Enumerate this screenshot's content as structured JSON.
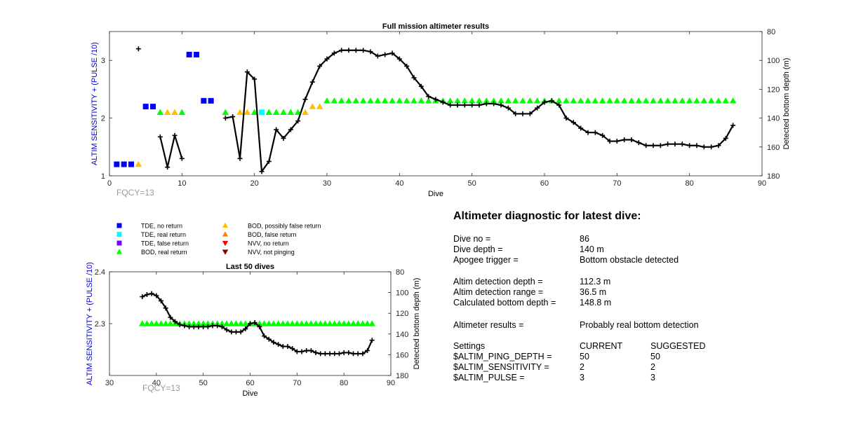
{
  "chart_data": [
    {
      "type": "scatter",
      "title": "Full mission altimeter results",
      "xlabel": "Dive",
      "ylabel_left": "ALTIM SENSITIVITY + (PULSE /10)",
      "ylabel_right": "Detected bottom depth (m)",
      "annotation": "FQCY=13",
      "xlim": [
        0,
        90
      ],
      "xticks": [
        "0",
        "10",
        "20",
        "30",
        "40",
        "50",
        "60",
        "70",
        "80",
        "90"
      ],
      "ylim_left": [
        1,
        3.5
      ],
      "yticks_left": [
        "1",
        "2",
        "3"
      ],
      "ylim_right_reversed": [
        180,
        80
      ],
      "yticks_right": [
        "80",
        "100",
        "120",
        "140",
        "160",
        "180"
      ],
      "markers": [
        {
          "category": "TDE, no return",
          "points": [
            [
              1,
              1.2
            ],
            [
              2,
              1.2
            ],
            [
              3,
              1.2
            ],
            [
              5,
              2.2
            ],
            [
              6,
              2.2
            ],
            [
              11,
              3.1
            ],
            [
              12,
              3.1
            ],
            [
              13,
              2.3
            ],
            [
              14,
              2.3
            ]
          ]
        },
        {
          "category": "TDE, real return",
          "points": [
            [
              21,
              2.1
            ]
          ]
        },
        {
          "category": "BOD, real return",
          "points": [
            [
              7,
              2.1
            ],
            [
              10,
              2.1
            ],
            [
              16,
              2.1
            ],
            [
              20,
              2.1
            ],
            [
              22,
              2.1
            ],
            [
              23,
              2.1
            ],
            [
              24,
              2.1
            ],
            [
              25,
              2.1
            ],
            [
              26,
              2.1
            ],
            [
              30,
              2.3
            ],
            [
              31,
              2.3
            ],
            [
              32,
              2.3
            ],
            [
              33,
              2.3
            ],
            [
              34,
              2.3
            ],
            [
              35,
              2.3
            ],
            [
              36,
              2.3
            ],
            [
              37,
              2.3
            ],
            [
              38,
              2.3
            ],
            [
              39,
              2.3
            ],
            [
              40,
              2.3
            ],
            [
              41,
              2.3
            ],
            [
              42,
              2.3
            ],
            [
              43,
              2.3
            ],
            [
              44,
              2.3
            ],
            [
              45,
              2.3
            ],
            [
              46,
              2.3
            ],
            [
              47,
              2.3
            ],
            [
              48,
              2.3
            ],
            [
              49,
              2.3
            ],
            [
              50,
              2.3
            ],
            [
              51,
              2.3
            ],
            [
              52,
              2.3
            ],
            [
              53,
              2.3
            ],
            [
              54,
              2.3
            ],
            [
              55,
              2.3
            ],
            [
              56,
              2.3
            ],
            [
              57,
              2.3
            ],
            [
              58,
              2.3
            ],
            [
              59,
              2.3
            ],
            [
              60,
              2.3
            ],
            [
              61,
              2.3
            ],
            [
              62,
              2.3
            ],
            [
              63,
              2.3
            ],
            [
              64,
              2.3
            ],
            [
              65,
              2.3
            ],
            [
              66,
              2.3
            ],
            [
              67,
              2.3
            ],
            [
              68,
              2.3
            ],
            [
              69,
              2.3
            ],
            [
              70,
              2.3
            ],
            [
              71,
              2.3
            ],
            [
              72,
              2.3
            ],
            [
              73,
              2.3
            ],
            [
              74,
              2.3
            ],
            [
              75,
              2.3
            ],
            [
              76,
              2.3
            ],
            [
              77,
              2.3
            ],
            [
              78,
              2.3
            ],
            [
              79,
              2.3
            ],
            [
              80,
              2.3
            ],
            [
              81,
              2.3
            ],
            [
              82,
              2.3
            ],
            [
              83,
              2.3
            ],
            [
              84,
              2.3
            ],
            [
              85,
              2.3
            ],
            [
              86,
              2.3
            ]
          ]
        },
        {
          "category": "BOD, possibly false return",
          "points": [
            [
              4,
              1.2
            ],
            [
              8,
              2.1
            ],
            [
              9,
              2.1
            ],
            [
              18,
              2.1
            ],
            [
              19,
              2.1
            ],
            [
              27,
              2.1
            ],
            [
              28,
              2.2
            ],
            [
              29,
              2.2
            ]
          ]
        }
      ],
      "depth_points": [
        [
          4,
          92
        ],
        [
          7,
          153
        ],
        [
          8,
          174
        ],
        [
          9,
          152
        ],
        [
          10,
          168
        ],
        [
          16,
          140
        ],
        [
          17,
          139
        ],
        [
          18,
          168
        ],
        [
          19,
          108
        ],
        [
          20,
          113
        ],
        [
          21,
          177
        ],
        [
          22,
          170
        ],
        [
          23,
          148
        ],
        [
          24,
          154
        ],
        [
          25,
          148
        ],
        [
          26,
          142
        ],
        [
          27,
          127
        ],
        [
          28,
          115
        ],
        [
          29,
          104
        ],
        [
          30,
          99
        ],
        [
          31,
          95
        ],
        [
          32,
          93
        ],
        [
          33,
          93
        ],
        [
          34,
          93
        ],
        [
          35,
          93
        ],
        [
          36,
          94
        ],
        [
          37,
          97
        ],
        [
          38,
          96
        ],
        [
          39,
          95
        ],
        [
          40,
          99
        ],
        [
          41,
          104
        ],
        [
          42,
          112
        ],
        [
          43,
          118
        ],
        [
          44,
          125
        ],
        [
          45,
          127
        ],
        [
          46,
          129
        ],
        [
          47,
          131
        ],
        [
          48,
          131
        ],
        [
          49,
          131
        ],
        [
          50,
          131
        ],
        [
          51,
          131
        ],
        [
          52,
          130
        ],
        [
          53,
          130
        ],
        [
          54,
          131
        ],
        [
          55,
          133
        ],
        [
          56,
          137
        ],
        [
          57,
          137
        ],
        [
          58,
          137
        ],
        [
          59,
          133
        ],
        [
          60,
          129
        ],
        [
          61,
          128
        ],
        [
          62,
          131
        ],
        [
          63,
          140
        ],
        [
          64,
          143
        ],
        [
          65,
          147
        ],
        [
          66,
          150
        ],
        [
          67,
          150
        ],
        [
          68,
          152
        ],
        [
          69,
          156
        ],
        [
          70,
          156
        ],
        [
          71,
          155
        ],
        [
          72,
          155
        ],
        [
          73,
          157
        ],
        [
          74,
          159
        ],
        [
          75,
          159
        ],
        [
          76,
          159
        ],
        [
          77,
          158
        ],
        [
          78,
          158
        ],
        [
          79,
          158
        ],
        [
          80,
          159
        ],
        [
          81,
          159
        ],
        [
          82,
          160
        ],
        [
          83,
          160
        ],
        [
          84,
          159
        ],
        [
          85,
          154
        ],
        [
          86,
          145
        ]
      ]
    },
    {
      "type": "scatter",
      "title": "Last 50 dives",
      "xlabel": "Dive",
      "ylabel_left": "ALTIM SENSITIVITY + (PULSE /10)",
      "ylabel_right": "Detected bottom depth (m)",
      "annotation": "FQCY=13",
      "xlim": [
        30,
        90
      ],
      "xticks": [
        "30",
        "40",
        "50",
        "60",
        "70",
        "80",
        "90"
      ],
      "ylim_left": [
        2.2,
        2.4
      ],
      "yticks_left": [
        "2.3",
        "2.4"
      ],
      "ylim_right_reversed": [
        180,
        80
      ],
      "yticks_right": [
        "80",
        "100",
        "120",
        "140",
        "160",
        "180"
      ],
      "bod_value": 2.3,
      "bod_dives": [
        37,
        86
      ],
      "depth_points": [
        [
          37,
          104
        ],
        [
          38,
          102
        ],
        [
          39,
          101
        ],
        [
          40,
          103
        ],
        [
          41,
          108
        ],
        [
          42,
          115
        ],
        [
          43,
          124
        ],
        [
          44,
          128
        ],
        [
          45,
          131
        ],
        [
          46,
          132
        ],
        [
          47,
          133
        ],
        [
          48,
          133
        ],
        [
          49,
          133
        ],
        [
          50,
          133
        ],
        [
          51,
          133
        ],
        [
          52,
          132
        ],
        [
          53,
          132
        ],
        [
          54,
          133
        ],
        [
          55,
          136
        ],
        [
          56,
          138
        ],
        [
          57,
          138
        ],
        [
          58,
          138
        ],
        [
          59,
          135
        ],
        [
          60,
          130
        ],
        [
          61,
          129
        ],
        [
          62,
          133
        ],
        [
          63,
          142
        ],
        [
          64,
          145
        ],
        [
          65,
          148
        ],
        [
          66,
          150
        ],
        [
          67,
          152
        ],
        [
          68,
          152
        ],
        [
          69,
          154
        ],
        [
          70,
          157
        ],
        [
          71,
          157
        ],
        [
          72,
          156
        ],
        [
          73,
          156
        ],
        [
          74,
          158
        ],
        [
          75,
          159
        ],
        [
          76,
          159
        ],
        [
          77,
          159
        ],
        [
          78,
          159
        ],
        [
          79,
          159
        ],
        [
          80,
          158
        ],
        [
          81,
          158
        ],
        [
          82,
          159
        ],
        [
          83,
          159
        ],
        [
          84,
          159
        ],
        [
          85,
          156
        ],
        [
          86,
          146
        ]
      ]
    }
  ],
  "legend": {
    "items": [
      {
        "label": "TDE, no return",
        "marker": "square",
        "color": "#0000ff"
      },
      {
        "label": "TDE, real return",
        "marker": "square",
        "color": "#00ffff"
      },
      {
        "label": "TDE, false return",
        "marker": "square",
        "color": "#8000ff"
      },
      {
        "label": "BOD, real return",
        "marker": "triangle-up",
        "color": "#00ff00"
      },
      {
        "label": "BOD, possibly false return",
        "marker": "triangle-up",
        "color": "#ffc000"
      },
      {
        "label": "BOD, false return",
        "marker": "triangle-up",
        "color": "#ff8000"
      },
      {
        "label": "NVV, no return",
        "marker": "triangle-down",
        "color": "#ff0000"
      },
      {
        "label": "NVV, not pinging",
        "marker": "triangle-down",
        "color": "#800000"
      }
    ]
  },
  "diagnostic": {
    "title": "Altimeter diagnostic for latest dive:",
    "dive_no_label": "Dive no =",
    "dive_no": "86",
    "dive_depth_label": "Dive depth =",
    "dive_depth": "140 m",
    "apogee_label": "Apogee trigger =",
    "apogee": "Bottom obstacle detected",
    "det_depth_label": "Altim detection depth =",
    "det_depth": "112.3 m",
    "det_range_label": "Altim detection range =",
    "det_range": "36.5 m",
    "calc_depth_label": "Calculated bottom depth =",
    "calc_depth": "148.8 m",
    "results_label": "Altimeter results =",
    "results": "Probably real bottom detection",
    "settings_label": "Settings",
    "current_label": "CURRENT",
    "suggested_label": "SUGGESTED",
    "ping_depth_label": "$ALTIM_PING_DEPTH =",
    "ping_depth_current": "50",
    "ping_depth_suggested": "50",
    "sensitivity_label": "$ALTIM_SENSITIVITY =",
    "sensitivity_current": "2",
    "sensitivity_suggested": "2",
    "pulse_label": "$ALTIM_PULSE =",
    "pulse_current": "3",
    "pulse_suggested": "3"
  },
  "colors": {
    "axis_label_blue": "#0000cc",
    "annotation_gray": "#999999",
    "line": "#000000"
  }
}
